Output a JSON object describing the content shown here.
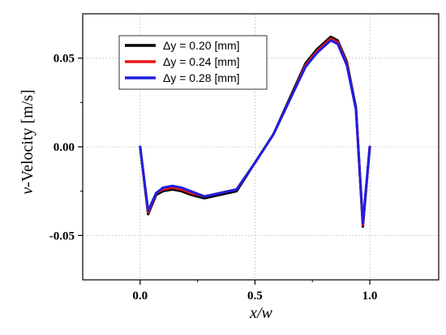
{
  "chart_data": {
    "type": "line",
    "xlabel_var": "x/w",
    "ylabel_var": "v",
    "ylabel_rest": "-Velocity [m/s]",
    "xlim": [
      -0.25,
      1.3
    ],
    "ylim": [
      -0.075,
      0.075
    ],
    "xticks": [
      0.0,
      0.5,
      1.0
    ],
    "xtick_labels": [
      "0.0",
      "0.5",
      "1.0"
    ],
    "yticks": [
      -0.05,
      0.0,
      0.05
    ],
    "ytick_labels": [
      "-0.05",
      "0.00",
      "0.05"
    ],
    "grid": true,
    "legend_position": "top-left",
    "series": [
      {
        "name": "Δy = 0.20 [mm]",
        "color": "#000000",
        "x": [
          0.0,
          0.035,
          0.07,
          0.1,
          0.14,
          0.18,
          0.22,
          0.28,
          0.35,
          0.42,
          0.5,
          0.58,
          0.65,
          0.72,
          0.77,
          0.83,
          0.86,
          0.9,
          0.94,
          0.97,
          1.0
        ],
        "y": [
          0.0,
          -0.038,
          -0.027,
          -0.025,
          -0.024,
          -0.025,
          -0.027,
          -0.029,
          -0.027,
          -0.025,
          -0.009,
          0.007,
          0.027,
          0.047,
          0.055,
          0.062,
          0.06,
          0.048,
          0.022,
          -0.045,
          0.0
        ]
      },
      {
        "name": "Δy = 0.24 [mm]",
        "color": "#e8141a",
        "x": [
          0.0,
          0.035,
          0.07,
          0.1,
          0.14,
          0.18,
          0.22,
          0.28,
          0.35,
          0.42,
          0.5,
          0.58,
          0.65,
          0.72,
          0.77,
          0.83,
          0.86,
          0.9,
          0.94,
          0.97,
          1.0
        ],
        "y": [
          0.0,
          -0.037,
          -0.026,
          -0.024,
          -0.023,
          -0.024,
          -0.026,
          -0.028,
          -0.026,
          -0.024,
          -0.009,
          0.007,
          0.026,
          0.046,
          0.054,
          0.061,
          0.059,
          0.047,
          0.021,
          -0.044,
          0.0
        ]
      },
      {
        "name": "Δy = 0.28 [mm]",
        "color": "#1f1fe0",
        "x": [
          0.0,
          0.035,
          0.07,
          0.1,
          0.14,
          0.18,
          0.22,
          0.28,
          0.35,
          0.42,
          0.5,
          0.58,
          0.65,
          0.72,
          0.77,
          0.83,
          0.86,
          0.9,
          0.94,
          0.97,
          1.0
        ],
        "y": [
          0.0,
          -0.036,
          -0.026,
          -0.023,
          -0.022,
          -0.023,
          -0.025,
          -0.028,
          -0.026,
          -0.024,
          -0.009,
          0.007,
          0.026,
          0.045,
          0.053,
          0.06,
          0.058,
          0.046,
          0.021,
          -0.043,
          0.0
        ]
      }
    ]
  }
}
